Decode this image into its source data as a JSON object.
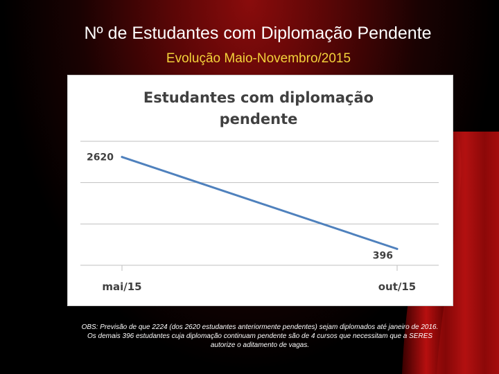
{
  "slide": {
    "title": "Nº de Estudantes com Diplomação Pendente",
    "subtitle": "Evolução Maio-Novembro/2015",
    "note": "OBS: Previsão de que 2224 (dos 2620 estudantes anteriormente pendentes) sejam diplomados até janeiro de 2016. Os demais 396 estudantes cuja diplomação continuam pendente são de 4 cursos que necessitam que a SERES autorize o aditamento de vagas."
  },
  "chart_data": {
    "type": "line",
    "title_lines": [
      "Estudantes com diplomação",
      "pendente"
    ],
    "categories": [
      "mai/15",
      "out/15"
    ],
    "series": [
      {
        "values": [
          2620,
          396
        ],
        "color": "#4f81bd"
      }
    ],
    "data_labels": [
      "2620",
      "396"
    ],
    "ylim": [
      0,
      3000
    ],
    "grid": true,
    "legend": "none"
  }
}
